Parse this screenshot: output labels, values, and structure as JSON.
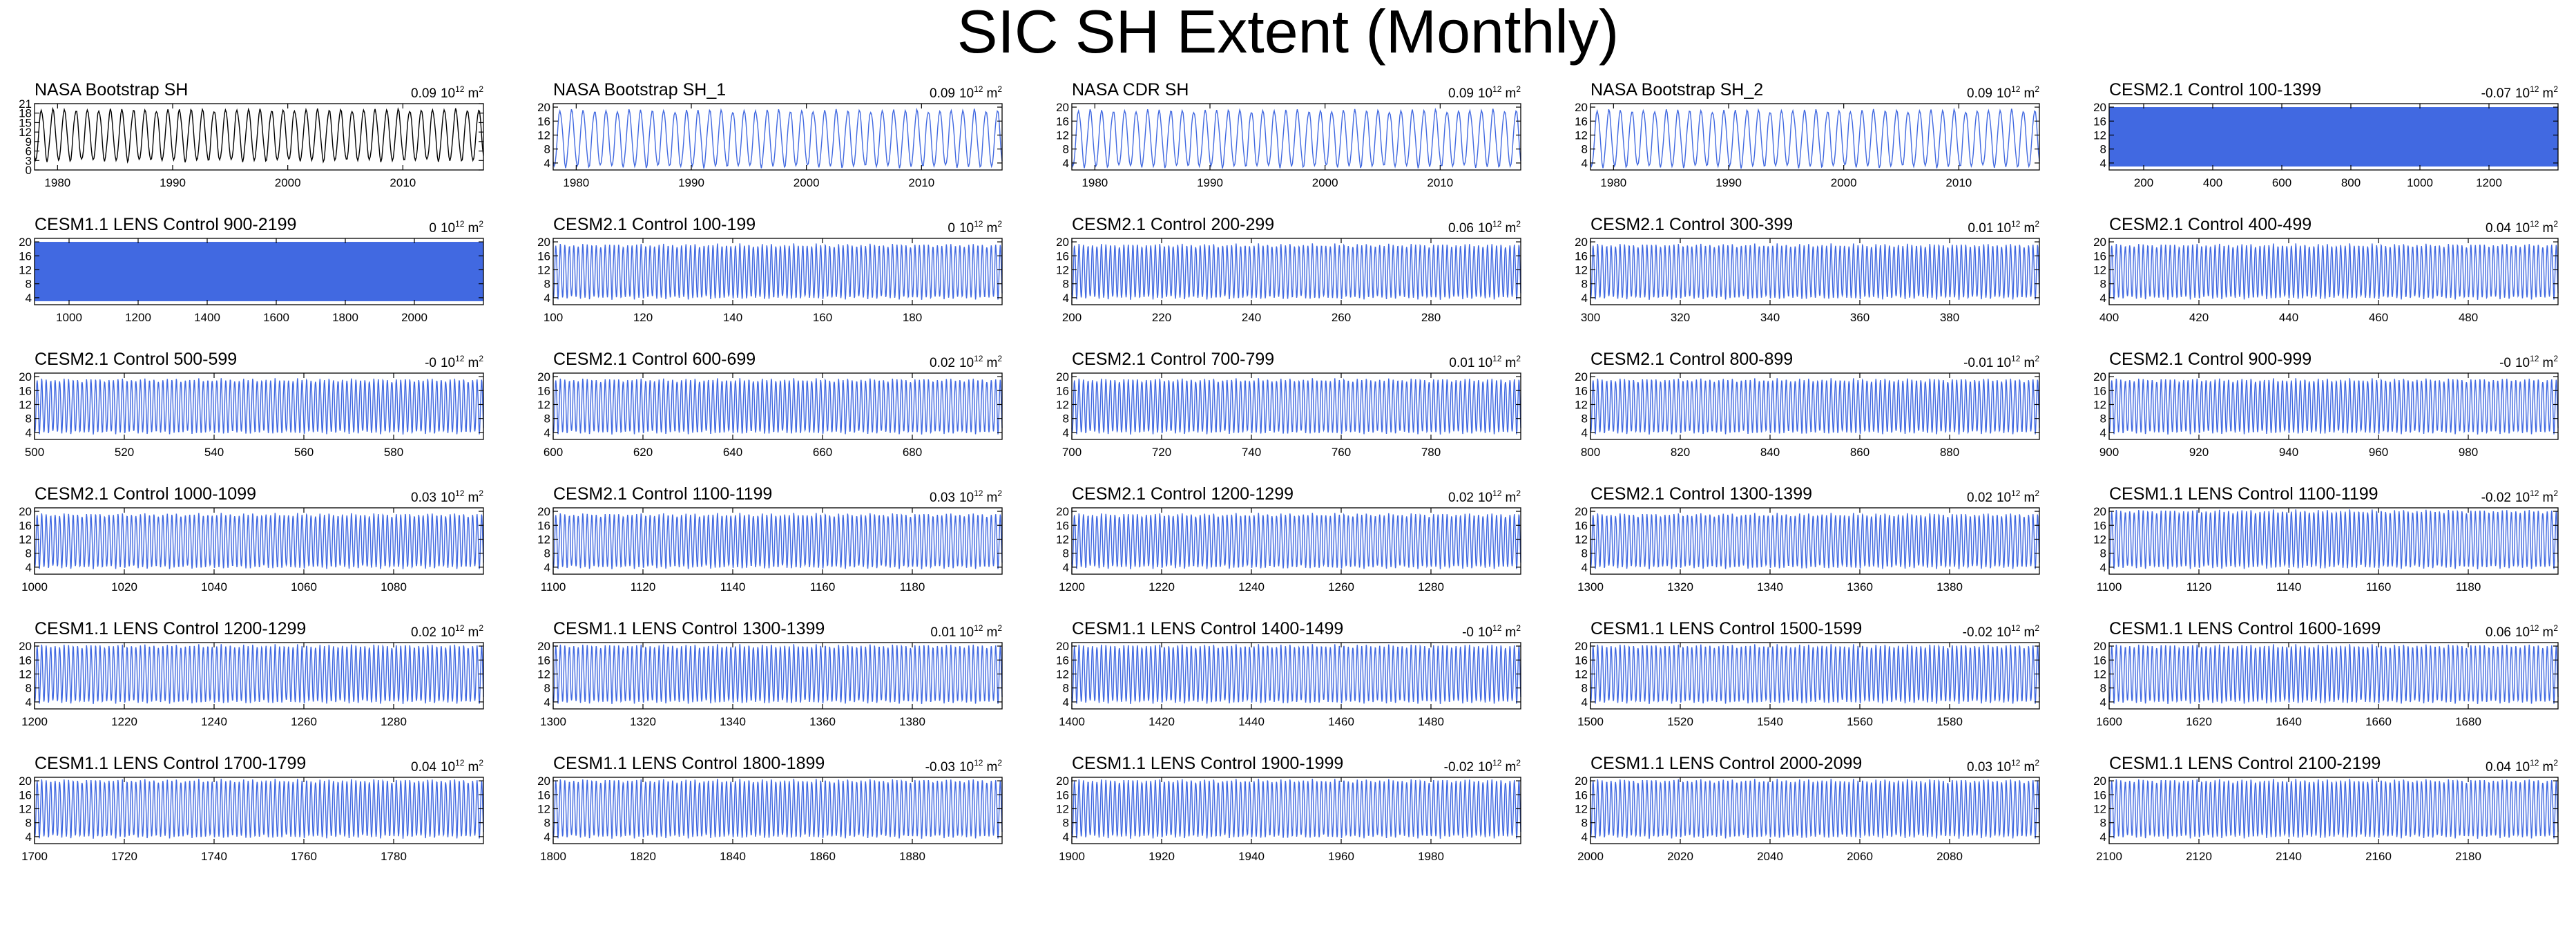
{
  "title": "SIC SH Extent (Monthly)",
  "trend_unit": {
    "base": "10",
    "exp": "12",
    "unit": "m",
    "unit_exp": "2"
  },
  "colors": {
    "observed": "#000000",
    "model": "#4169e1",
    "highlight": "#999999"
  },
  "chart_data": [
    {
      "type": "line",
      "title": "NASA Bootstrap SH",
      "trend": "0.09",
      "color": "#000000",
      "x_range": [
        1978,
        2017
      ],
      "ylim": [
        0,
        21
      ],
      "y_ticks": [
        "0",
        "3",
        "6",
        "9",
        "12",
        "15",
        "18",
        "21"
      ],
      "x_ticks": [
        "1980",
        "1990",
        "2000",
        "2010"
      ],
      "series": {
        "style": "seasonal",
        "min": 3,
        "max": 19,
        "period_years": 1
      }
    },
    {
      "type": "line",
      "title": "NASA Bootstrap SH_1",
      "trend": "0.09",
      "color": "#4169e1",
      "x_range": [
        1978,
        2017
      ],
      "ylim": [
        2,
        21
      ],
      "y_ticks": [
        "4",
        "8",
        "12",
        "16",
        "20"
      ],
      "x_ticks": [
        "1980",
        "1990",
        "2000",
        "2010"
      ],
      "series": {
        "style": "seasonal",
        "min": 3,
        "max": 19,
        "period_years": 1
      }
    },
    {
      "type": "line",
      "title": "NASA CDR SH",
      "trend": "0.09",
      "color": "#4169e1",
      "x_range": [
        1978,
        2017
      ],
      "ylim": [
        2,
        21
      ],
      "y_ticks": [
        "4",
        "8",
        "12",
        "16",
        "20"
      ],
      "x_ticks": [
        "1980",
        "1990",
        "2000",
        "2010"
      ],
      "series": {
        "style": "seasonal",
        "min": 3,
        "max": 19,
        "period_years": 1
      }
    },
    {
      "type": "line",
      "title": "NASA Bootstrap SH_2",
      "trend": "0.09",
      "color": "#4169e1",
      "x_range": [
        1978,
        2017
      ],
      "ylim": [
        2,
        21
      ],
      "y_ticks": [
        "4",
        "8",
        "12",
        "16",
        "20"
      ],
      "x_ticks": [
        "1980",
        "1990",
        "2000",
        "2010"
      ],
      "series": {
        "style": "seasonal",
        "min": 3,
        "max": 19,
        "period_years": 1
      }
    },
    {
      "type": "line",
      "title": "CESM2.1 Control 100-1399",
      "trend": "-0.07",
      "color": "#4169e1",
      "x_range": [
        100,
        1400
      ],
      "ylim": [
        2,
        21
      ],
      "y_ticks": [
        "4",
        "8",
        "12",
        "16",
        "20"
      ],
      "x_ticks": [
        "200",
        "400",
        "600",
        "800",
        "1000",
        "1200"
      ],
      "series": {
        "style": "dense",
        "min": 3,
        "max": 20
      }
    },
    {
      "type": "line",
      "title": "CESM1.1 LENS Control 900-2199",
      "trend": "0",
      "color": "#4169e1",
      "x_range": [
        900,
        2200
      ],
      "ylim": [
        2,
        21
      ],
      "y_ticks": [
        "4",
        "8",
        "12",
        "16",
        "20"
      ],
      "x_ticks": [
        "1000",
        "1200",
        "1400",
        "1600",
        "1800",
        "2000"
      ],
      "series": {
        "style": "dense",
        "min": 3,
        "max": 20
      }
    },
    {
      "type": "line",
      "title": "CESM2.1 Control 100-199",
      "trend": "0",
      "color": "#4169e1",
      "x_range": [
        100,
        200
      ],
      "ylim": [
        2,
        21
      ],
      "y_ticks": [
        "4",
        "8",
        "12",
        "16",
        "20"
      ],
      "x_ticks": [
        "100",
        "120",
        "140",
        "160",
        "180"
      ],
      "series": {
        "style": "seasonal",
        "min": 4,
        "max": 19,
        "period_years": 1
      }
    },
    {
      "type": "line",
      "title": "CESM2.1 Control 200-299",
      "trend": "0.06",
      "color": "#4169e1",
      "x_range": [
        200,
        300
      ],
      "ylim": [
        2,
        21
      ],
      "y_ticks": [
        "4",
        "8",
        "12",
        "16",
        "20"
      ],
      "x_ticks": [
        "200",
        "220",
        "240",
        "260",
        "280"
      ],
      "series": {
        "style": "seasonal",
        "min": 4,
        "max": 19,
        "period_years": 1
      }
    },
    {
      "type": "line",
      "title": "CESM2.1 Control 300-399",
      "trend": "0.01",
      "color": "#4169e1",
      "x_range": [
        300,
        400
      ],
      "ylim": [
        2,
        21
      ],
      "y_ticks": [
        "4",
        "8",
        "12",
        "16",
        "20"
      ],
      "x_ticks": [
        "300",
        "320",
        "340",
        "360",
        "380"
      ],
      "series": {
        "style": "seasonal",
        "min": 4,
        "max": 19,
        "period_years": 1
      }
    },
    {
      "type": "line",
      "title": "CESM2.1 Control 400-499",
      "trend": "0.04",
      "color": "#4169e1",
      "x_range": [
        400,
        500
      ],
      "ylim": [
        2,
        21
      ],
      "y_ticks": [
        "4",
        "8",
        "12",
        "16",
        "20"
      ],
      "x_ticks": [
        "400",
        "420",
        "440",
        "460",
        "480"
      ],
      "series": {
        "style": "seasonal",
        "min": 4,
        "max": 19,
        "period_years": 1
      }
    },
    {
      "type": "line",
      "title": "CESM2.1 Control 500-599",
      "trend": "-0",
      "color": "#4169e1",
      "x_range": [
        500,
        600
      ],
      "ylim": [
        2,
        21
      ],
      "y_ticks": [
        "4",
        "8",
        "12",
        "16",
        "20"
      ],
      "x_ticks": [
        "500",
        "520",
        "540",
        "560",
        "580"
      ],
      "series": {
        "style": "seasonal",
        "min": 4,
        "max": 19,
        "period_years": 1
      }
    },
    {
      "type": "line",
      "title": "CESM2.1 Control 600-699",
      "trend": "0.02",
      "color": "#4169e1",
      "x_range": [
        600,
        700
      ],
      "ylim": [
        2,
        21
      ],
      "y_ticks": [
        "4",
        "8",
        "12",
        "16",
        "20"
      ],
      "x_ticks": [
        "600",
        "620",
        "640",
        "660",
        "680"
      ],
      "series": {
        "style": "seasonal",
        "min": 4,
        "max": 19,
        "period_years": 1
      }
    },
    {
      "type": "line",
      "title": "CESM2.1 Control 700-799",
      "trend": "0.01",
      "color": "#4169e1",
      "x_range": [
        700,
        800
      ],
      "ylim": [
        2,
        21
      ],
      "y_ticks": [
        "4",
        "8",
        "12",
        "16",
        "20"
      ],
      "x_ticks": [
        "700",
        "720",
        "740",
        "760",
        "780"
      ],
      "series": {
        "style": "seasonal",
        "min": 4,
        "max": 19,
        "period_years": 1
      }
    },
    {
      "type": "line",
      "title": "CESM2.1 Control 800-899",
      "trend": "-0.01",
      "color": "#4169e1",
      "x_range": [
        800,
        900
      ],
      "ylim": [
        2,
        21
      ],
      "y_ticks": [
        "4",
        "8",
        "12",
        "16",
        "20"
      ],
      "x_ticks": [
        "800",
        "820",
        "840",
        "860",
        "880"
      ],
      "series": {
        "style": "seasonal",
        "min": 4,
        "max": 19,
        "period_years": 1
      }
    },
    {
      "type": "line",
      "title": "CESM2.1 Control 900-999",
      "trend": "-0",
      "color": "#4169e1",
      "x_range": [
        900,
        1000
      ],
      "ylim": [
        2,
        21
      ],
      "y_ticks": [
        "4",
        "8",
        "12",
        "16",
        "20"
      ],
      "x_ticks": [
        "900",
        "920",
        "940",
        "960",
        "980"
      ],
      "series": {
        "style": "seasonal",
        "min": 4,
        "max": 19,
        "period_years": 1
      }
    },
    {
      "type": "line",
      "title": "CESM2.1 Control 1000-1099",
      "trend": "0.03",
      "color": "#4169e1",
      "x_range": [
        1000,
        1100
      ],
      "ylim": [
        2,
        21
      ],
      "y_ticks": [
        "4",
        "8",
        "12",
        "16",
        "20"
      ],
      "x_ticks": [
        "1000",
        "1020",
        "1040",
        "1060",
        "1080"
      ],
      "series": {
        "style": "seasonal",
        "min": 4,
        "max": 19,
        "period_years": 1
      }
    },
    {
      "type": "line",
      "title": "CESM2.1 Control 1100-1199",
      "trend": "0.03",
      "color": "#4169e1",
      "x_range": [
        1100,
        1200
      ],
      "ylim": [
        2,
        21
      ],
      "y_ticks": [
        "4",
        "8",
        "12",
        "16",
        "20"
      ],
      "x_ticks": [
        "1100",
        "1120",
        "1140",
        "1160",
        "1180"
      ],
      "series": {
        "style": "seasonal",
        "min": 4,
        "max": 19,
        "period_years": 1
      }
    },
    {
      "type": "line",
      "title": "CESM2.1 Control 1200-1299",
      "trend": "0.02",
      "color": "#4169e1",
      "x_range": [
        1200,
        1300
      ],
      "ylim": [
        2,
        21
      ],
      "y_ticks": [
        "4",
        "8",
        "12",
        "16",
        "20"
      ],
      "x_ticks": [
        "1200",
        "1220",
        "1240",
        "1260",
        "1280"
      ],
      "series": {
        "style": "seasonal",
        "min": 4,
        "max": 19,
        "period_years": 1
      }
    },
    {
      "type": "line",
      "title": "CESM2.1 Control 1300-1399",
      "trend": "0.02",
      "color": "#4169e1",
      "x_range": [
        1300,
        1400
      ],
      "ylim": [
        2,
        21
      ],
      "y_ticks": [
        "4",
        "8",
        "12",
        "16",
        "20"
      ],
      "x_ticks": [
        "1300",
        "1320",
        "1340",
        "1360",
        "1380"
      ],
      "series": {
        "style": "seasonal",
        "min": 4,
        "max": 19,
        "period_years": 1
      }
    },
    {
      "type": "line",
      "title": "CESM1.1 LENS Control 1100-1199",
      "trend": "-0.02",
      "color": "#4169e1",
      "x_range": [
        1100,
        1200
      ],
      "ylim": [
        2,
        21
      ],
      "y_ticks": [
        "4",
        "8",
        "12",
        "16",
        "20"
      ],
      "x_ticks": [
        "1100",
        "1120",
        "1140",
        "1160",
        "1180"
      ],
      "series": {
        "style": "seasonal",
        "min": 4,
        "max": 20,
        "period_years": 1
      }
    },
    {
      "type": "line",
      "title": "CESM1.1 LENS Control 1200-1299",
      "trend": "0.02",
      "color": "#4169e1",
      "x_range": [
        1200,
        1300
      ],
      "ylim": [
        2,
        21
      ],
      "y_ticks": [
        "4",
        "8",
        "12",
        "16",
        "20"
      ],
      "x_ticks": [
        "1200",
        "1220",
        "1240",
        "1260",
        "1280"
      ],
      "series": {
        "style": "seasonal",
        "min": 4,
        "max": 20,
        "period_years": 1
      }
    },
    {
      "type": "line",
      "title": "CESM1.1 LENS Control 1300-1399",
      "trend": "0.01",
      "color": "#4169e1",
      "x_range": [
        1300,
        1400
      ],
      "ylim": [
        2,
        21
      ],
      "y_ticks": [
        "4",
        "8",
        "12",
        "16",
        "20"
      ],
      "x_ticks": [
        "1300",
        "1320",
        "1340",
        "1360",
        "1380"
      ],
      "series": {
        "style": "seasonal",
        "min": 4,
        "max": 20,
        "period_years": 1
      }
    },
    {
      "type": "line",
      "title": "CESM1.1 LENS Control 1400-1499",
      "trend": "-0",
      "color": "#4169e1",
      "x_range": [
        1400,
        1500
      ],
      "ylim": [
        2,
        21
      ],
      "y_ticks": [
        "4",
        "8",
        "12",
        "16",
        "20"
      ],
      "x_ticks": [
        "1400",
        "1420",
        "1440",
        "1460",
        "1480"
      ],
      "series": {
        "style": "seasonal",
        "min": 4,
        "max": 20,
        "period_years": 1
      }
    },
    {
      "type": "line",
      "title": "CESM1.1 LENS Control 1500-1599",
      "trend": "-0.02",
      "color": "#4169e1",
      "x_range": [
        1500,
        1600
      ],
      "ylim": [
        2,
        21
      ],
      "y_ticks": [
        "4",
        "8",
        "12",
        "16",
        "20"
      ],
      "x_ticks": [
        "1500",
        "1520",
        "1540",
        "1560",
        "1580"
      ],
      "series": {
        "style": "seasonal",
        "min": 4,
        "max": 20,
        "period_years": 1
      }
    },
    {
      "type": "line",
      "title": "CESM1.1 LENS Control 1600-1699",
      "trend": "0.06",
      "color": "#4169e1",
      "x_range": [
        1600,
        1700
      ],
      "ylim": [
        2,
        21
      ],
      "y_ticks": [
        "4",
        "8",
        "12",
        "16",
        "20"
      ],
      "x_ticks": [
        "1600",
        "1620",
        "1640",
        "1660",
        "1680"
      ],
      "series": {
        "style": "seasonal",
        "min": 4,
        "max": 20,
        "period_years": 1
      }
    },
    {
      "type": "line",
      "title": "CESM1.1 LENS Control 1700-1799",
      "trend": "0.04",
      "color": "#4169e1",
      "x_range": [
        1700,
        1800
      ],
      "ylim": [
        2,
        21
      ],
      "y_ticks": [
        "4",
        "8",
        "12",
        "16",
        "20"
      ],
      "x_ticks": [
        "1700",
        "1720",
        "1740",
        "1760",
        "1780"
      ],
      "series": {
        "style": "seasonal",
        "min": 4,
        "max": 20,
        "period_years": 1
      }
    },
    {
      "type": "line",
      "title": "CESM1.1 LENS Control 1800-1899",
      "trend": "-0.03",
      "color": "#4169e1",
      "x_range": [
        1800,
        1900
      ],
      "ylim": [
        2,
        21
      ],
      "y_ticks": [
        "4",
        "8",
        "12",
        "16",
        "20"
      ],
      "x_ticks": [
        "1800",
        "1820",
        "1840",
        "1860",
        "1880"
      ],
      "series": {
        "style": "seasonal",
        "min": 4,
        "max": 20,
        "period_years": 1
      }
    },
    {
      "type": "line",
      "title": "CESM1.1 LENS Control 1900-1999",
      "trend": "-0.02",
      "color": "#4169e1",
      "x_range": [
        1900,
        2000
      ],
      "ylim": [
        2,
        21
      ],
      "y_ticks": [
        "4",
        "8",
        "12",
        "16",
        "20"
      ],
      "x_ticks": [
        "1900",
        "1920",
        "1940",
        "1960",
        "1980"
      ],
      "series": {
        "style": "seasonal",
        "min": 4,
        "max": 20,
        "period_years": 1
      }
    },
    {
      "type": "line",
      "title": "CESM1.1 LENS Control 2000-2099",
      "trend": "0.03",
      "color": "#4169e1",
      "x_range": [
        2000,
        2100
      ],
      "ylim": [
        2,
        21
      ],
      "y_ticks": [
        "4",
        "8",
        "12",
        "16",
        "20"
      ],
      "x_ticks": [
        "2000",
        "2020",
        "2040",
        "2060",
        "2080"
      ],
      "series": {
        "style": "seasonal",
        "min": 4,
        "max": 20,
        "period_years": 1
      }
    },
    {
      "type": "line",
      "title": "CESM1.1 LENS Control 2100-2199",
      "trend": "0.04",
      "color": "#4169e1",
      "x_range": [
        2100,
        2200
      ],
      "ylim": [
        2,
        21
      ],
      "y_ticks": [
        "4",
        "8",
        "12",
        "16",
        "20"
      ],
      "x_ticks": [
        "2100",
        "2120",
        "2140",
        "2160",
        "2180"
      ],
      "series": {
        "style": "seasonal",
        "min": 4,
        "max": 20,
        "period_years": 1
      }
    }
  ]
}
